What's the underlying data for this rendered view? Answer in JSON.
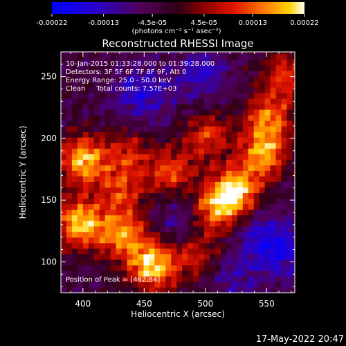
{
  "chart_data": {
    "type": "heatmap",
    "title": "Reconstructed RHESSI Image",
    "xlabel": "Heliocentric X (arcsec)",
    "ylabel": "Heliocentric Y (arcsec)",
    "xlim": [
      382,
      573
    ],
    "ylim": [
      75,
      270
    ],
    "x_ticks": [
      "400",
      "450",
      "500",
      "550"
    ],
    "y_ticks": [
      "100",
      "150",
      "200",
      "250"
    ],
    "colorbar": {
      "unit_label": "(photons cm⁻² s⁻¹ asec⁻²)",
      "range": [
        -0.00022,
        0.00022
      ],
      "tick_labels": [
        "-0.00022",
        "-0.00013",
        "-4.5e-05",
        "4.5e-05",
        "0.00013",
        "0.00022"
      ],
      "tick_values": [
        -0.00022,
        -0.00013,
        -4.5e-05,
        4.5e-05,
        0.00013,
        0.00022
      ],
      "colormap": "RHESSI std-gamma (blue-purple-red-orange-yellow-white)"
    },
    "annotations": [
      "10-Jan-2015 01:33:28.000 to 01:39:28.000",
      "Detectors: 3F 5F 6F 7F 8F 9F, Att 0",
      "Energy Range: 25.0 - 50.0 keV",
      "Clean     Total counts: 7.57E+03",
      "Position of Peak = [462,84]"
    ],
    "peak_position": [
      462,
      84
    ],
    "hotspots": [
      {
        "x": 398,
        "y": 180,
        "intensity": 0.9
      },
      {
        "x": 395,
        "y": 130,
        "intensity": 0.95
      },
      {
        "x": 455,
        "y": 95,
        "intensity": 1.0
      },
      {
        "x": 430,
        "y": 120,
        "intensity": 0.75
      },
      {
        "x": 522,
        "y": 155,
        "intensity": 0.95
      },
      {
        "x": 545,
        "y": 185,
        "intensity": 0.8
      },
      {
        "x": 550,
        "y": 215,
        "intensity": 0.7
      },
      {
        "x": 500,
        "y": 200,
        "intensity": 0.55
      },
      {
        "x": 470,
        "y": 170,
        "intensity": 0.6
      },
      {
        "x": 430,
        "y": 155,
        "intensity": 0.5
      },
      {
        "x": 435,
        "y": 185,
        "intensity": 0.45
      },
      {
        "x": 565,
        "y": 250,
        "intensity": 0.55
      },
      {
        "x": 490,
        "y": 105,
        "intensity": 0.5
      },
      {
        "x": 505,
        "y": 140,
        "intensity": 0.7
      }
    ],
    "cold_regions": [
      {
        "x": 445,
        "y": 235,
        "depth": 0.8
      },
      {
        "x": 495,
        "y": 250,
        "depth": 0.7
      },
      {
        "x": 560,
        "y": 105,
        "depth": 0.7
      },
      {
        "x": 545,
        "y": 120,
        "depth": 0.6
      },
      {
        "x": 478,
        "y": 130,
        "depth": 0.55
      },
      {
        "x": 520,
        "y": 85,
        "depth": 0.5
      }
    ]
  },
  "timestamp": "17-May-2022 20:47"
}
